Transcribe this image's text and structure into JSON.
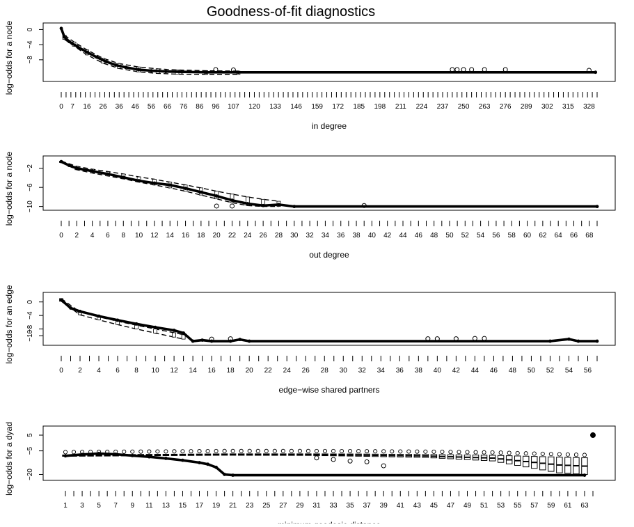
{
  "title": "Goodness-of-fit diagnostics",
  "chart_data": [
    {
      "type": "box",
      "xlabel": "in degree",
      "ylabel": "log-odds for a node",
      "yticks": [
        0,
        -4,
        -8
      ],
      "ylim": [
        -13,
        1
      ],
      "xlim": [
        0,
        333
      ],
      "xticks": [
        0,
        7,
        16,
        26,
        36,
        46,
        56,
        66,
        76,
        86,
        96,
        107,
        120,
        133,
        146,
        159,
        172,
        185,
        198,
        211,
        224,
        237,
        250,
        263,
        276,
        289,
        302,
        315,
        328
      ],
      "observed": [
        [
          0,
          0.3
        ],
        [
          2,
          -2.0
        ],
        [
          5,
          -3.2
        ],
        [
          10,
          -4.5
        ],
        [
          16,
          -6.0
        ],
        [
          22,
          -7.3
        ],
        [
          28,
          -8.5
        ],
        [
          34,
          -9.4
        ],
        [
          40,
          -10.0
        ],
        [
          48,
          -10.6
        ],
        [
          56,
          -10.9
        ],
        [
          65,
          -11.1
        ],
        [
          75,
          -11.2
        ],
        [
          90,
          -11.3
        ],
        [
          110,
          -11.3
        ],
        [
          332,
          -11.3
        ]
      ],
      "band_upper": [
        [
          2,
          -1.5
        ],
        [
          8,
          -3.3
        ],
        [
          16,
          -5.4
        ],
        [
          26,
          -7.6
        ],
        [
          36,
          -9.0
        ],
        [
          48,
          -9.9
        ],
        [
          60,
          -10.4
        ],
        [
          72,
          -10.7
        ],
        [
          90,
          -10.9
        ],
        [
          110,
          -11.0
        ]
      ],
      "band_lower": [
        [
          2,
          -2.6
        ],
        [
          8,
          -4.4
        ],
        [
          16,
          -6.7
        ],
        [
          26,
          -8.9
        ],
        [
          36,
          -10.3
        ],
        [
          48,
          -11.2
        ],
        [
          60,
          -11.6
        ],
        [
          72,
          -11.8
        ],
        [
          90,
          -11.9
        ],
        [
          110,
          -11.9
        ]
      ],
      "outliers": [
        [
          96,
          -10.6
        ],
        [
          107,
          -10.7
        ],
        [
          243,
          -10.6
        ],
        [
          246,
          -10.6
        ],
        [
          250,
          -10.6
        ],
        [
          255,
          -10.6
        ],
        [
          263,
          -10.6
        ],
        [
          276,
          -10.6
        ],
        [
          328,
          -10.8
        ]
      ]
    },
    {
      "type": "box",
      "xlabel": "out degree",
      "ylabel": "log-odds for a node",
      "yticks": [
        -2,
        -6,
        -10
      ],
      "ylim": [
        -10.2,
        0
      ],
      "xlim": [
        0,
        69
      ],
      "xticks": [
        0,
        2,
        4,
        6,
        8,
        10,
        12,
        14,
        16,
        18,
        20,
        22,
        24,
        26,
        28,
        30,
        32,
        34,
        36,
        38,
        40,
        42,
        44,
        46,
        48,
        50,
        52,
        54,
        56,
        58,
        60,
        62,
        64,
        66,
        68
      ],
      "observed": [
        [
          0,
          -0.6
        ],
        [
          1,
          -1.4
        ],
        [
          2,
          -2.0
        ],
        [
          4,
          -2.6
        ],
        [
          6,
          -3.2
        ],
        [
          8,
          -3.9
        ],
        [
          10,
          -4.6
        ],
        [
          12,
          -5.1
        ],
        [
          14,
          -5.5
        ],
        [
          16,
          -6.2
        ],
        [
          18,
          -7.0
        ],
        [
          20,
          -7.8
        ],
        [
          22,
          -8.7
        ],
        [
          24,
          -9.4
        ],
        [
          26,
          -9.8
        ],
        [
          28,
          -9.6
        ],
        [
          30,
          -10.0
        ],
        [
          69,
          -10.0
        ]
      ],
      "band_upper": [
        [
          0,
          -0.5
        ],
        [
          2,
          -1.6
        ],
        [
          4,
          -2.2
        ],
        [
          6,
          -2.7
        ],
        [
          8,
          -3.2
        ],
        [
          10,
          -3.8
        ],
        [
          12,
          -4.3
        ],
        [
          14,
          -4.9
        ],
        [
          16,
          -5.5
        ],
        [
          18,
          -6.1
        ],
        [
          20,
          -6.8
        ],
        [
          22,
          -7.4
        ],
        [
          24,
          -8.0
        ],
        [
          26,
          -8.5
        ],
        [
          28,
          -8.9
        ]
      ],
      "band_lower": [
        [
          0,
          -0.8
        ],
        [
          2,
          -2.3
        ],
        [
          4,
          -3.0
        ],
        [
          6,
          -3.6
        ],
        [
          8,
          -4.2
        ],
        [
          10,
          -4.9
        ],
        [
          12,
          -5.5
        ],
        [
          14,
          -6.1
        ],
        [
          16,
          -6.8
        ],
        [
          18,
          -7.6
        ],
        [
          20,
          -8.4
        ],
        [
          22,
          -9.2
        ],
        [
          24,
          -9.8
        ],
        [
          26,
          -10.0
        ],
        [
          28,
          -10.0
        ]
      ],
      "outliers": [
        [
          20,
          -9.9
        ],
        [
          22,
          -9.9
        ],
        [
          39,
          -9.8
        ]
      ]
    },
    {
      "type": "box",
      "xlabel": "edge-wise shared partners",
      "ylabel": "log-odds for an edge",
      "yticks": [
        0,
        -4,
        -8,
        -10
      ],
      "ylim": [
        -12,
        2
      ],
      "xlim": [
        0,
        57
      ],
      "xticks": [
        0,
        2,
        4,
        6,
        8,
        10,
        12,
        14,
        16,
        18,
        20,
        22,
        24,
        26,
        28,
        30,
        32,
        34,
        36,
        38,
        40,
        42,
        44,
        46,
        48,
        50,
        52,
        54,
        56
      ],
      "observed": [
        [
          0,
          0.6
        ],
        [
          1,
          -1.8
        ],
        [
          2,
          -2.8
        ],
        [
          4,
          -4.2
        ],
        [
          6,
          -5.4
        ],
        [
          8,
          -6.5
        ],
        [
          10,
          -7.5
        ],
        [
          12,
          -8.4
        ],
        [
          13,
          -9.2
        ],
        [
          14,
          -11.6
        ],
        [
          15,
          -11.3
        ],
        [
          16,
          -11.6
        ],
        [
          18,
          -11.6
        ],
        [
          19,
          -11.1
        ],
        [
          20,
          -11.6
        ],
        [
          52,
          -11.6
        ],
        [
          54,
          -11.0
        ],
        [
          55,
          -11.6
        ],
        [
          57,
          -11.6
        ]
      ],
      "band_upper": [
        [
          0,
          1.0
        ],
        [
          2,
          -3.0
        ],
        [
          4,
          -4.4
        ],
        [
          6,
          -5.7
        ],
        [
          8,
          -6.9
        ],
        [
          10,
          -8.0
        ],
        [
          12,
          -9.1
        ],
        [
          13,
          -9.7
        ]
      ],
      "band_lower": [
        [
          0,
          0.2
        ],
        [
          2,
          -3.8
        ],
        [
          4,
          -5.3
        ],
        [
          6,
          -6.7
        ],
        [
          8,
          -8.0
        ],
        [
          10,
          -9.2
        ],
        [
          12,
          -10.4
        ],
        [
          13,
          -11.0
        ]
      ],
      "outliers": [
        [
          16,
          -11.0
        ],
        [
          18,
          -10.9
        ],
        [
          39,
          -10.9
        ],
        [
          40,
          -10.9
        ],
        [
          42,
          -10.9
        ],
        [
          44,
          -10.8
        ],
        [
          45,
          -10.8
        ]
      ]
    },
    {
      "type": "box",
      "xlabel": "minimum geodesic distance",
      "ylabel": "log-odds for a dyad",
      "yticks": [
        5,
        -5,
        -20
      ],
      "ylim": [
        -22,
        9
      ],
      "xlim": [
        0.5,
        64.5
      ],
      "xticks": [
        1,
        3,
        5,
        7,
        9,
        11,
        13,
        15,
        17,
        19,
        21,
        23,
        25,
        27,
        29,
        31,
        33,
        35,
        37,
        39,
        41,
        43,
        45,
        47,
        49,
        51,
        53,
        55,
        57,
        59,
        61,
        63
      ],
      "observed": [
        [
          1,
          -8.2
        ],
        [
          3,
          -7.3
        ],
        [
          5,
          -6.7
        ],
        [
          7,
          -7.2
        ],
        [
          9,
          -8.0
        ],
        [
          11,
          -8.8
        ],
        [
          13,
          -9.8
        ],
        [
          15,
          -11.0
        ],
        [
          17,
          -12.5
        ],
        [
          18,
          -13.5
        ],
        [
          19,
          -15.5
        ],
        [
          20,
          -20.0
        ],
        [
          21,
          -20.5
        ],
        [
          63,
          -20.5
        ]
      ],
      "box_top": [
        [
          1,
          -7.6
        ],
        [
          20,
          -6.9
        ],
        [
          30,
          -6.9
        ],
        [
          36,
          -7.0
        ],
        [
          44,
          -7.3
        ],
        [
          52,
          -7.8
        ],
        [
          60,
          -9.0
        ],
        [
          63,
          -9.4
        ]
      ],
      "box_bottom": [
        [
          1,
          -8.4
        ],
        [
          20,
          -7.8
        ],
        [
          30,
          -7.9
        ],
        [
          36,
          -8.4
        ],
        [
          44,
          -9.2
        ],
        [
          52,
          -11.4
        ],
        [
          60,
          -19.0
        ],
        [
          63,
          -20.0
        ]
      ],
      "outliers": [
        [
          31,
          -9.5
        ],
        [
          33,
          -10.5
        ],
        [
          35,
          -11.5
        ],
        [
          37,
          -12.0
        ],
        [
          39,
          -14.5
        ]
      ],
      "top_point": [
        64,
        5
      ]
    }
  ]
}
